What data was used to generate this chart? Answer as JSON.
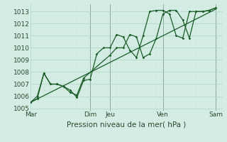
{
  "xlabel": "Pression niveau de la mer( hPa )",
  "ylim": [
    1004.8,
    1013.6
  ],
  "yticks": [
    1005,
    1006,
    1007,
    1008,
    1009,
    1010,
    1011,
    1012,
    1013
  ],
  "bg_color": "#d4ede4",
  "grid_major_color": "#b0d4c4",
  "grid_minor_color": "#c8e4d8",
  "line_color": "#1a5c28",
  "sep_color": "#444444",
  "day_labels": [
    "Mar",
    "Dim",
    "Jeu",
    "Ven",
    "Sam"
  ],
  "day_positions": [
    0,
    9,
    12,
    20,
    28
  ],
  "xlim": [
    0,
    29
  ],
  "series1_x": [
    0,
    1,
    2,
    3,
    4,
    5,
    6,
    7,
    8,
    9,
    10,
    11,
    12,
    13,
    14,
    15,
    16,
    17,
    18,
    19,
    20,
    21,
    22,
    23,
    24,
    25,
    26,
    27,
    28
  ],
  "series1_y": [
    1005.5,
    1005.8,
    1007.9,
    1007.0,
    1007.0,
    1006.8,
    1006.5,
    1005.9,
    1007.3,
    1007.4,
    1009.5,
    1010.0,
    1010.0,
    1011.1,
    1010.9,
    1009.8,
    1009.2,
    1011.0,
    1013.0,
    1013.1,
    1013.1,
    1012.8,
    1011.0,
    1010.8,
    1013.0,
    1013.0,
    1013.0,
    1013.1,
    1013.3
  ],
  "series2_x": [
    0,
    1,
    2,
    3,
    4,
    5,
    6,
    7,
    8,
    12,
    13,
    14,
    15,
    16,
    17,
    18,
    19,
    20,
    21,
    22,
    23,
    24,
    25,
    26,
    27,
    28
  ],
  "series2_y": [
    1005.5,
    1006.0,
    1007.9,
    1007.0,
    1007.0,
    1006.8,
    1006.3,
    1006.1,
    1007.5,
    1009.4,
    1010.0,
    1010.0,
    1011.1,
    1010.9,
    1009.2,
    1009.5,
    1010.8,
    1012.8,
    1013.1,
    1013.1,
    1012.3,
    1010.8,
    1013.0,
    1013.0,
    1013.1,
    1013.3
  ],
  "trend_x": [
    0,
    28
  ],
  "trend_y": [
    1005.5,
    1013.2
  ],
  "xlabel_fontsize": 7.5,
  "tick_fontsize": 6.5,
  "day_fontsize": 6.5
}
